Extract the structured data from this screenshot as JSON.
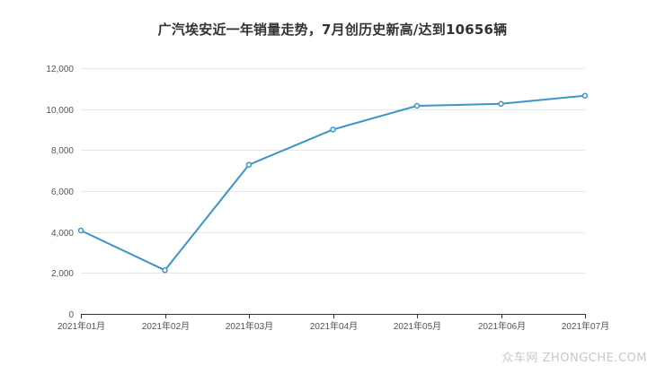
{
  "chart_data": {
    "type": "line",
    "title": "广汽埃安近一年销量走势，7月创历史新高/达到10656辆",
    "xlabel": "",
    "ylabel": "",
    "categories": [
      "2021年01月",
      "2021年02月",
      "2021年03月",
      "2021年04月",
      "2021年05月",
      "2021年06月",
      "2021年07月"
    ],
    "series": [
      {
        "values": [
          4073,
          2134,
          7284,
          9003,
          10162,
          10256,
          10656
        ]
      }
    ],
    "ylim": [
      0,
      12000
    ],
    "yticks": [
      0,
      2000,
      4000,
      6000,
      8000,
      10000,
      12000
    ],
    "ytick_labels": [
      "0",
      "2,000",
      "4,000",
      "6,000",
      "8,000",
      "10,000",
      "12,000"
    ],
    "grid": true,
    "legend": "none",
    "line_color": "#3d95c6"
  },
  "watermark": {
    "text": "众车网 ZHONGCHE.COM"
  }
}
